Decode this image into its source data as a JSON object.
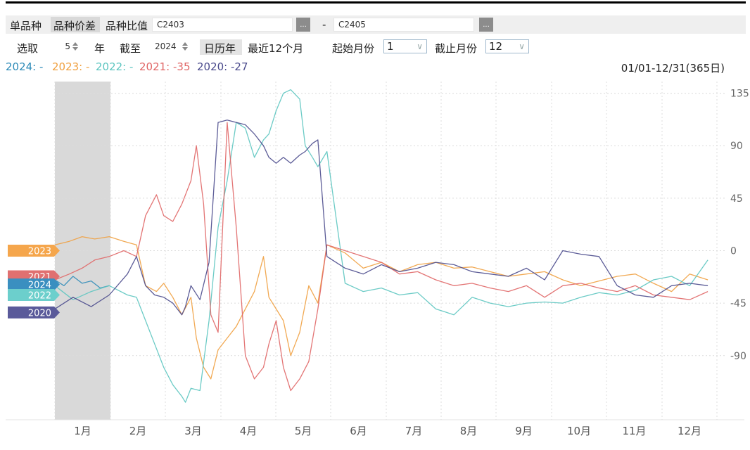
{
  "toolbar1": {
    "tab_single": "单品种",
    "tab_spread": "品种价差",
    "tab_ratio": "品种比值",
    "contract_a": "C2403",
    "dash": "-",
    "contract_b": "C2405",
    "dots_label": "..."
  },
  "toolbar2": {
    "select_label": "选取",
    "years_value": "5",
    "years_unit": "年",
    "until_label": "截至",
    "until_value": "2024",
    "calendar_year": "日历年",
    "recent_12": "最近12个月",
    "start_month_label": "起始月份",
    "start_month_value": "1",
    "end_month_label": "截止月份",
    "end_month_value": "12"
  },
  "legend": [
    {
      "label": "2024: -",
      "color": "#2e8bb8"
    },
    {
      "label": "2023: -",
      "color": "#f0a040"
    },
    {
      "label": "2022: -",
      "color": "#5cc5c0"
    },
    {
      "label": "2021: -35",
      "color": "#e06666"
    },
    {
      "label": "2020: -27",
      "color": "#4a4a8c"
    }
  ],
  "date_range": "01/01-12/31(365日)",
  "chart_data": {
    "type": "line",
    "ylim": [
      -145,
      145
    ],
    "yticks": [
      135,
      90,
      45,
      0,
      -45,
      -90
    ],
    "xtick_labels": [
      "1月",
      "2月",
      "3月",
      "4月",
      "5月",
      "6月",
      "7月",
      "8月",
      "9月",
      "10月",
      "11月",
      "12月"
    ],
    "grid": true,
    "shaded_period": "1月",
    "series_tags": [
      {
        "name": "2023",
        "value": 0,
        "color": "#f5a64c"
      },
      {
        "name": "2021",
        "value": -22,
        "color": "#e07070"
      },
      {
        "name": "2024",
        "value": -29,
        "color": "#3a8fc0"
      },
      {
        "name": "2022",
        "value": -38,
        "color": "#6ccfcc"
      },
      {
        "name": "2020",
        "value": -53,
        "color": "#5a5a9a"
      }
    ],
    "series": [
      {
        "name": "2024",
        "color": "#2e8bb8",
        "x": [
          0,
          5,
          10,
          15,
          20,
          25,
          30
        ],
        "y": [
          -25,
          -30,
          -22,
          -28,
          -26,
          -32,
          -30
        ]
      },
      {
        "name": "2023",
        "color": "#f0a040",
        "x": [
          0,
          8,
          15,
          22,
          30,
          38,
          45,
          50,
          56,
          60,
          65,
          70,
          75,
          78,
          82,
          86,
          90,
          95,
          100,
          105,
          110,
          115,
          118,
          122,
          126,
          130,
          135,
          140,
          145,
          150,
          160,
          170,
          180,
          190,
          200,
          210,
          220,
          230,
          240,
          250,
          260,
          270,
          280,
          290,
          300,
          310,
          320,
          330,
          340,
          350,
          360
        ],
        "y": [
          5,
          8,
          12,
          10,
          12,
          8,
          5,
          -30,
          -35,
          -28,
          -40,
          -55,
          -40,
          -75,
          -100,
          -110,
          -85,
          -75,
          -65,
          -50,
          -35,
          -5,
          -40,
          -50,
          -60,
          -90,
          -70,
          -30,
          -45,
          5,
          -2,
          -15,
          -10,
          -18,
          -12,
          -10,
          -15,
          -14,
          -18,
          -22,
          -20,
          -18,
          -25,
          -30,
          -26,
          -22,
          -20,
          -28,
          -35,
          -20,
          -25
        ]
      },
      {
        "name": "2022",
        "color": "#5cc5c0",
        "x": [
          0,
          10,
          20,
          30,
          40,
          45,
          50,
          55,
          60,
          65,
          70,
          72,
          75,
          80,
          85,
          90,
          95,
          100,
          105,
          110,
          115,
          118,
          122,
          126,
          130,
          135,
          138,
          142,
          145,
          150,
          160,
          170,
          180,
          190,
          200,
          210,
          220,
          230,
          240,
          250,
          260,
          270,
          280,
          290,
          300,
          310,
          320,
          330,
          340,
          350,
          360
        ],
        "y": [
          -30,
          -42,
          -35,
          -30,
          -38,
          -40,
          -60,
          -80,
          -100,
          -115,
          -125,
          -130,
          -118,
          -120,
          -60,
          20,
          60,
          110,
          105,
          80,
          95,
          100,
          120,
          135,
          138,
          130,
          90,
          80,
          72,
          85,
          -28,
          -35,
          -32,
          -38,
          -36,
          -50,
          -55,
          -40,
          -45,
          -48,
          -45,
          -44,
          -45,
          -40,
          -36,
          -38,
          -34,
          -25,
          -22,
          -30,
          -8
        ]
      },
      {
        "name": "2021",
        "color": "#e06666",
        "x": [
          0,
          8,
          15,
          22,
          30,
          38,
          45,
          50,
          56,
          60,
          65,
          70,
          75,
          78,
          82,
          86,
          90,
          95,
          100,
          105,
          110,
          115,
          118,
          122,
          126,
          130,
          135,
          140,
          145,
          150,
          160,
          170,
          180,
          190,
          200,
          210,
          220,
          230,
          240,
          250,
          260,
          270,
          280,
          290,
          300,
          310,
          320,
          330,
          340,
          350,
          360
        ],
        "y": [
          -25,
          -20,
          -15,
          -8,
          -5,
          0,
          -5,
          30,
          48,
          30,
          25,
          40,
          60,
          90,
          40,
          -55,
          -70,
          110,
          20,
          -90,
          -110,
          -100,
          -80,
          -60,
          -100,
          -120,
          -110,
          -95,
          -50,
          5,
          0,
          -5,
          -10,
          -20,
          -18,
          -25,
          -30,
          -28,
          -32,
          -35,
          -30,
          -40,
          -30,
          -28,
          -32,
          -35,
          -30,
          -38,
          -40,
          -42,
          -35
        ]
      },
      {
        "name": "2020",
        "color": "#4a4a8c",
        "x": [
          0,
          10,
          20,
          30,
          40,
          45,
          50,
          55,
          60,
          65,
          70,
          72,
          75,
          80,
          85,
          90,
          95,
          100,
          105,
          110,
          115,
          118,
          122,
          126,
          130,
          135,
          138,
          142,
          145,
          150,
          160,
          170,
          180,
          190,
          200,
          210,
          220,
          230,
          240,
          250,
          260,
          270,
          280,
          290,
          300,
          310,
          320,
          330,
          340,
          350,
          360
        ],
        "y": [
          -50,
          -40,
          -48,
          -38,
          -20,
          -5,
          -30,
          -38,
          -40,
          -45,
          -55,
          -48,
          -30,
          -42,
          -10,
          110,
          112,
          110,
          108,
          100,
          90,
          80,
          75,
          80,
          75,
          82,
          85,
          92,
          95,
          -5,
          -15,
          -20,
          -12,
          -18,
          -15,
          -10,
          -12,
          -18,
          -20,
          -22,
          -15,
          -25,
          0,
          -3,
          -5,
          -30,
          -38,
          -40,
          -30,
          -28,
          -30
        ]
      }
    ]
  }
}
